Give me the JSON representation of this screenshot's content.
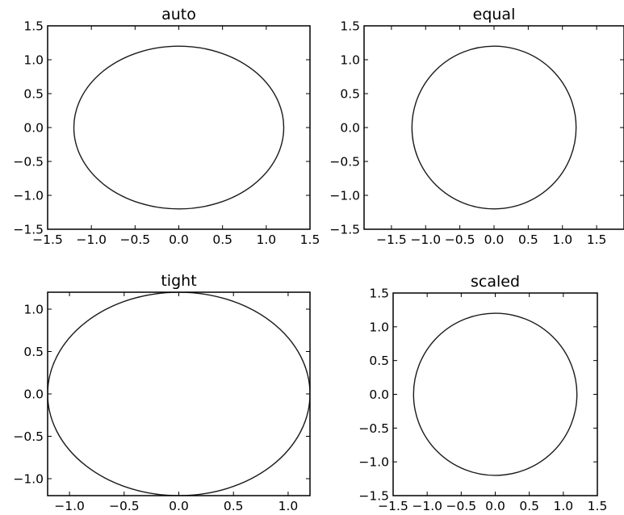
{
  "figure": {
    "colors": {
      "line": "#1a1a1a",
      "frame": "#000000",
      "background": "#ffffff"
    }
  },
  "chart_data": [
    {
      "type": "line",
      "title": "auto",
      "xlabel": "",
      "ylabel": "",
      "xlim": [
        -1.5,
        1.5
      ],
      "ylim": [
        -1.5,
        1.5
      ],
      "xticks": [
        -1.5,
        -1.0,
        -0.5,
        0.0,
        0.5,
        1.0,
        1.5
      ],
      "xtick_labels": [
        "−1.5",
        "−1.0",
        "−0.5",
        "0.0",
        "0.5",
        "1.0",
        "1.5"
      ],
      "yticks": [
        -1.5,
        -1.0,
        -0.5,
        0.0,
        0.5,
        1.0,
        1.5
      ],
      "ytick_labels": [
        "−1.5",
        "−1.0",
        "−0.5",
        "0.0",
        "0.5",
        "1.0",
        "1.5"
      ],
      "grid": false,
      "series": [
        {
          "shape": "circle",
          "center": [
            0,
            0
          ],
          "radius": 1.2
        }
      ]
    },
    {
      "type": "line",
      "title": "equal",
      "xlabel": "",
      "ylabel": "",
      "xlim": [
        -1.9,
        1.9
      ],
      "ylim": [
        -1.5,
        1.5
      ],
      "xticks": [
        -1.5,
        -1.0,
        -0.5,
        0.0,
        0.5,
        1.0,
        1.5
      ],
      "xtick_labels": [
        "−1.5",
        "−1.0",
        "−0.5",
        "0.0",
        "0.5",
        "1.0",
        "1.5"
      ],
      "yticks": [
        -1.5,
        -1.0,
        -0.5,
        0.0,
        0.5,
        1.0,
        1.5
      ],
      "ytick_labels": [
        "−1.5",
        "−1.0",
        "−0.5",
        "0.0",
        "0.5",
        "1.0",
        "1.5"
      ],
      "grid": false,
      "series": [
        {
          "shape": "circle",
          "center": [
            0,
            0
          ],
          "radius": 1.2
        }
      ]
    },
    {
      "type": "line",
      "title": "tight",
      "xlabel": "",
      "ylabel": "",
      "xlim": [
        -1.2,
        1.2
      ],
      "ylim": [
        -1.2,
        1.2
      ],
      "xticks": [
        -1.0,
        -0.5,
        0.0,
        0.5,
        1.0
      ],
      "xtick_labels": [
        "−1.0",
        "−0.5",
        "0.0",
        "0.5",
        "1.0"
      ],
      "yticks": [
        -1.0,
        -0.5,
        0.0,
        0.5,
        1.0
      ],
      "ytick_labels": [
        "−1.0",
        "−0.5",
        "0.0",
        "0.5",
        "1.0"
      ],
      "grid": false,
      "series": [
        {
          "shape": "circle",
          "center": [
            0,
            0
          ],
          "radius": 1.2
        }
      ]
    },
    {
      "type": "line",
      "title": "scaled",
      "xlabel": "",
      "ylabel": "",
      "xlim": [
        -1.5,
        1.5
      ],
      "ylim": [
        -1.5,
        1.5
      ],
      "xticks": [
        -1.5,
        -1.0,
        -0.5,
        0.0,
        0.5,
        1.0,
        1.5
      ],
      "xtick_labels": [
        "−1.5",
        "−1.0",
        "−0.5",
        "0.0",
        "0.5",
        "1.0",
        "1.5"
      ],
      "yticks": [
        -1.5,
        -1.0,
        -0.5,
        0.0,
        0.5,
        1.0,
        1.5
      ],
      "ytick_labels": [
        "−1.5",
        "−1.0",
        "−0.5",
        "0.0",
        "0.5",
        "1.0",
        "1.5"
      ],
      "grid": false,
      "series": [
        {
          "shape": "circle",
          "center": [
            0,
            0
          ],
          "radius": 1.2
        }
      ]
    }
  ]
}
